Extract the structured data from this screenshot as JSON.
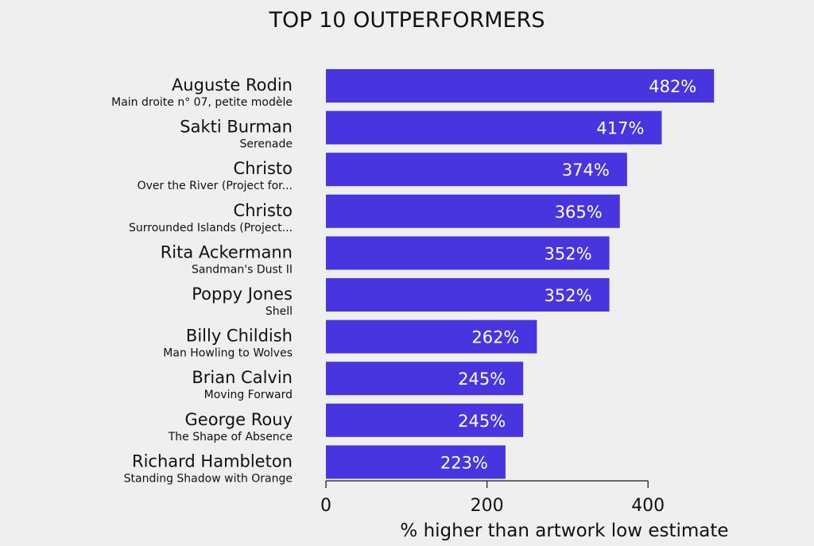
{
  "chart_data": {
    "type": "bar",
    "orientation": "horizontal",
    "title": "TOP 10 OUTPERFORMERS",
    "xlabel": "% higher than artwork low estimate",
    "ylabel": "",
    "xlim": [
      0,
      500
    ],
    "xticks": [
      0,
      200,
      400
    ],
    "grid": false,
    "bar_color": "#4835e0",
    "label_color": "#ffffff",
    "value_suffix": "%",
    "categories": [
      {
        "artist": "Auguste Rodin",
        "artwork": "Main droite n° 07, petite modèle"
      },
      {
        "artist": "Sakti Burman",
        "artwork": "Serenade"
      },
      {
        "artist": "Christo",
        "artwork": "Over the River (Project for..."
      },
      {
        "artist": "Christo",
        "artwork": "Surrounded Islands (Project..."
      },
      {
        "artist": "Rita Ackermann",
        "artwork": "Sandman's Dust II"
      },
      {
        "artist": "Poppy Jones",
        "artwork": "Shell"
      },
      {
        "artist": "Billy Childish",
        "artwork": "Man Howling to Wolves"
      },
      {
        "artist": "Brian Calvin",
        "artwork": "Moving Forward"
      },
      {
        "artist": "George Rouy",
        "artwork": "The Shape of Absence"
      },
      {
        "artist": "Richard Hambleton",
        "artwork": "Standing Shadow with Orange"
      }
    ],
    "values": [
      482,
      417,
      374,
      365,
      352,
      352,
      262,
      245,
      245,
      223
    ]
  }
}
